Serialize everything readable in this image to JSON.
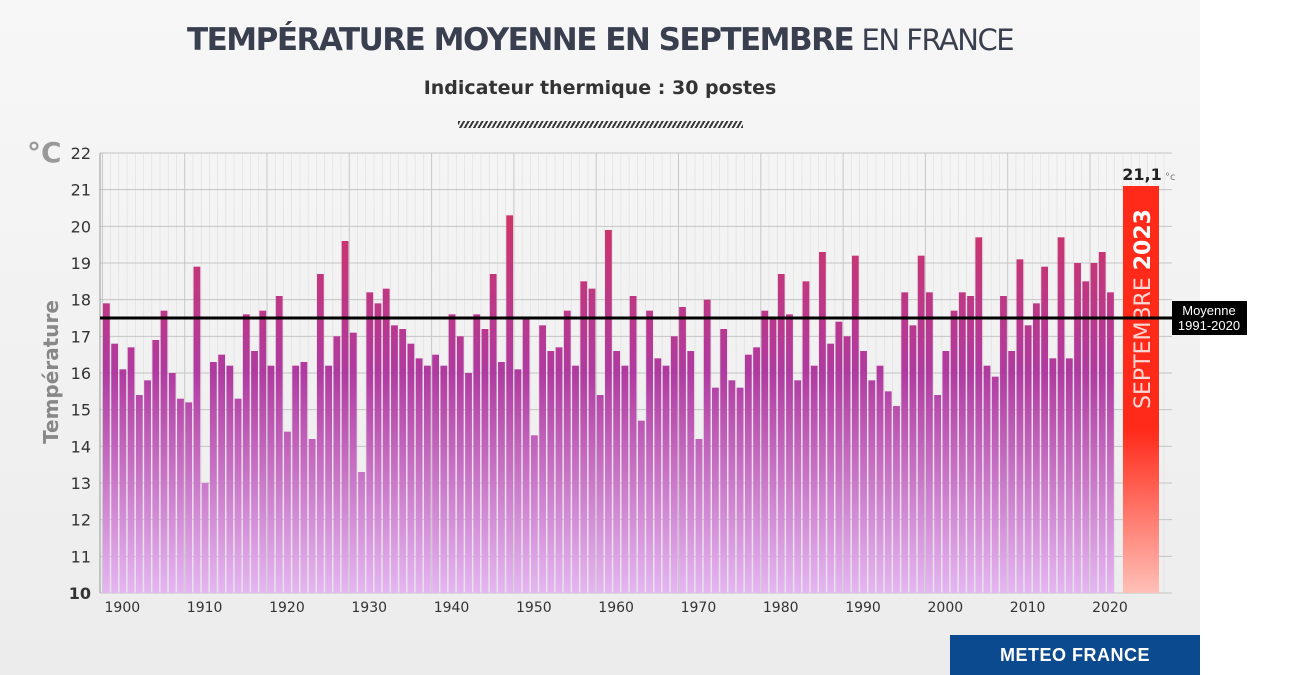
{
  "header": {
    "title_bold": "TEMPÉRATURE MOYENNE EN SEPTEMBRE",
    "title_light": "EN FRANCE",
    "subtitle": "Indicateur thermique : 30 postes"
  },
  "colors": {
    "bar_top": "#d3335e",
    "bar_mid": "#b03aa0",
    "bar_bottom": "#e5b6f2",
    "highlight_top": "#ff2a1a",
    "highlight_bottom": "#ffc0b8",
    "reference_line": "#000000",
    "brand": "#0c4a8f"
  },
  "chart_data": {
    "type": "bar",
    "title": "TEMPÉRATURE MOYENNE EN SEPTEMBRE EN FRANCE",
    "subtitle": "Indicateur thermique : 30 postes",
    "xlabel": "",
    "ylabel": "Température",
    "unit": "°C",
    "ylim": [
      10,
      22
    ],
    "yticks": [
      10,
      11,
      12,
      13,
      14,
      15,
      16,
      17,
      18,
      19,
      20,
      21,
      22
    ],
    "xticks": [
      1900,
      1910,
      1920,
      1930,
      1940,
      1950,
      1960,
      1970,
      1980,
      1990,
      2000,
      2010,
      2020
    ],
    "grid": true,
    "years": [
      1900,
      2022
    ],
    "values": [
      17.9,
      16.8,
      16.1,
      16.7,
      15.4,
      15.8,
      16.9,
      17.7,
      16.0,
      15.3,
      15.2,
      18.9,
      13.0,
      16.3,
      16.5,
      16.2,
      15.3,
      17.6,
      16.6,
      17.7,
      16.2,
      18.1,
      14.4,
      16.2,
      16.3,
      14.2,
      18.7,
      16.2,
      17.0,
      19.6,
      17.1,
      13.3,
      18.2,
      17.9,
      18.3,
      17.3,
      17.2,
      16.8,
      16.4,
      16.2,
      16.5,
      16.2,
      17.6,
      17.0,
      16.0,
      17.6,
      17.2,
      18.7,
      16.3,
      20.3,
      16.1,
      17.5,
      14.3,
      17.3,
      16.6,
      16.7,
      17.7,
      16.2,
      18.5,
      18.3,
      15.4,
      19.9,
      16.6,
      16.2,
      18.1,
      14.7,
      17.7,
      16.4,
      16.2,
      17.0,
      17.8,
      16.6,
      14.2,
      18.0,
      15.6,
      17.2,
      15.8,
      15.6,
      16.5,
      16.7,
      17.7,
      17.5,
      18.7,
      17.6,
      15.8,
      18.5,
      16.2,
      19.3,
      16.8,
      17.4,
      17.0,
      19.2,
      16.6,
      15.8,
      16.2,
      15.5,
      15.1,
      18.2,
      17.3,
      19.2,
      18.2,
      15.4,
      16.6,
      17.7,
      18.2,
      18.1,
      19.7,
      16.2,
      15.9,
      18.1,
      16.6,
      19.1,
      17.3,
      17.9,
      18.9,
      16.4,
      19.7,
      16.4,
      19.0,
      18.5,
      19.0,
      19.3,
      18.2
    ],
    "highlight": {
      "year": 2023,
      "value": 21.1,
      "value_label": "21,1",
      "value_unit": "°c",
      "label_light": "SEPTEMBRE",
      "label_bold": "2023"
    },
    "reference_line": {
      "value": 17.5,
      "label_line1": "Moyenne",
      "label_line2": "1991-2020"
    }
  },
  "footer": {
    "logo_text": "METEO FRANCE"
  }
}
